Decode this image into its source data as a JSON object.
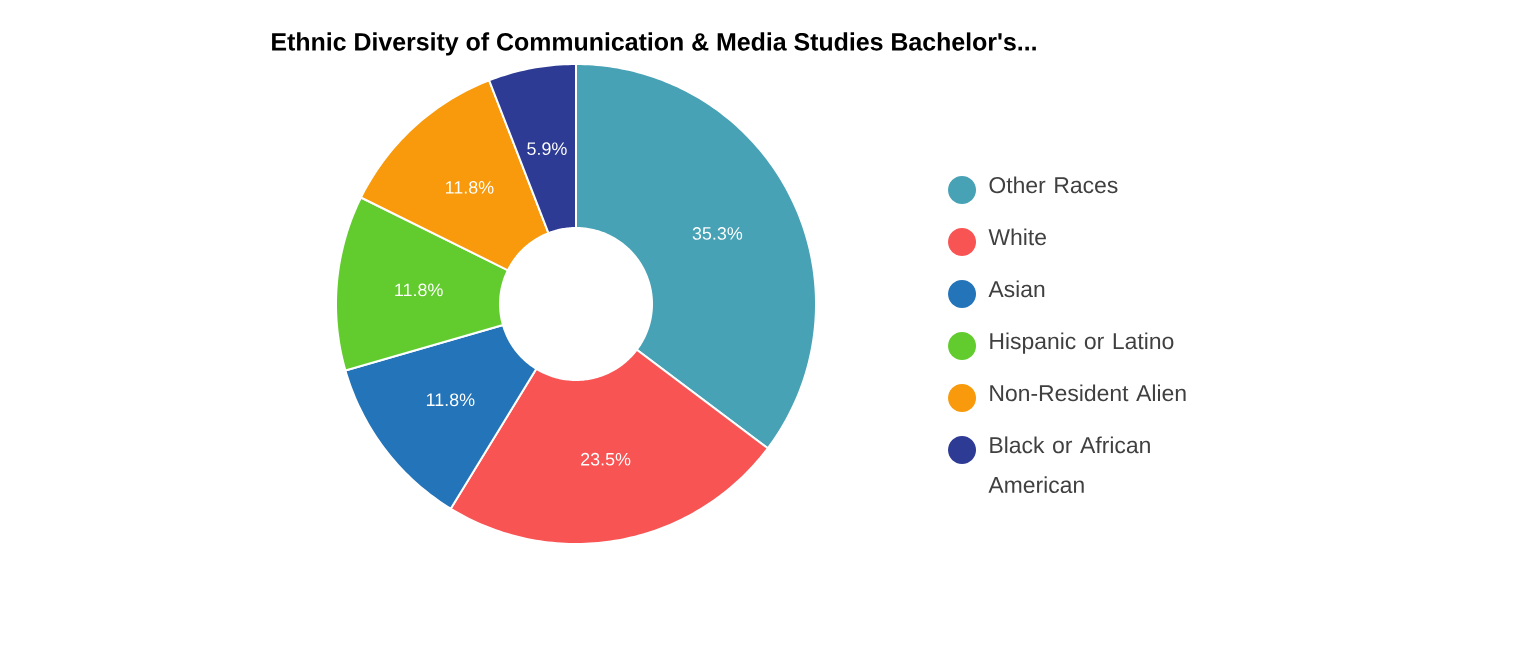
{
  "chart_data": {
    "type": "donut",
    "title": "Ethnic Diversity of Communication & Media Studies Bachelor's...",
    "categories": [
      "Other Races",
      "White",
      "Asian",
      "Hispanic or Latino",
      "Non-Resident Alien",
      "Black or African American"
    ],
    "values": [
      35.3,
      23.5,
      11.8,
      11.8,
      11.8,
      5.9
    ],
    "colors": [
      "#48a2b5",
      "#f95454",
      "#2474b9",
      "#62cc2e",
      "#f89a0b",
      "#2e3b94"
    ],
    "value_labels": [
      "35.3%",
      "23.5%",
      "11.8%",
      "11.8%",
      "11.8%",
      "5.9%"
    ],
    "legend": "right"
  }
}
